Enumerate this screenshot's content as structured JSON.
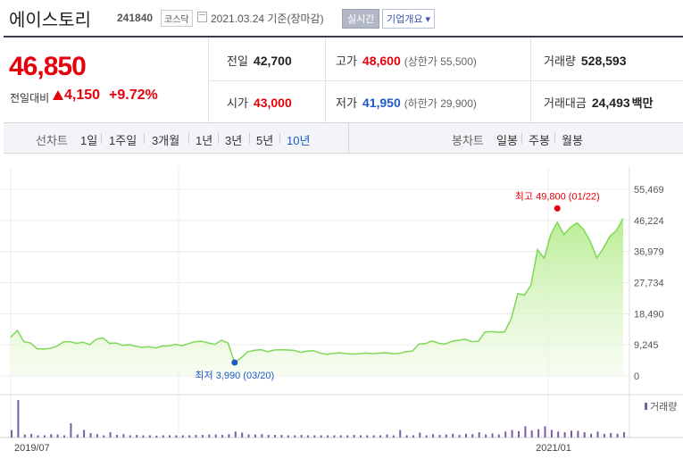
{
  "header": {
    "stock_name": "에이스토리",
    "stock_code": "241840",
    "market": "코스닥",
    "date_text": "2021.03.24 기준(장마감)",
    "realtime_label": "실시간",
    "company_label": "기업개요 ▾"
  },
  "price": {
    "current": "46,850",
    "change_label": "전일대비",
    "change_value": "4,150",
    "change_pct": "+9.72%"
  },
  "stats": {
    "prev_label": "전일",
    "prev_value": "42,700",
    "high_label": "고가",
    "high_value": "48,600",
    "high_sub": "(상한가 55,500)",
    "volume_label": "거래량",
    "volume_value": "528,593",
    "open_label": "시가",
    "open_value": "43,000",
    "low_label": "저가",
    "low_value": "41,950",
    "low_sub": "(하한가 29,900)",
    "amount_label": "거래대금",
    "amount_value": "24,493",
    "amount_unit": "백만"
  },
  "tabs": {
    "line_label": "선차트",
    "line_periods": [
      "1일",
      "1주일",
      "3개월",
      "1년",
      "3년",
      "5년",
      "10년"
    ],
    "candle_label": "봉차트",
    "candle_periods": [
      "일봉",
      "주봉",
      "월봉"
    ]
  },
  "colors": {
    "up": "#e5000a",
    "down": "#1e5bc6",
    "line": "#7ed957",
    "volume": "#7a5fa8"
  },
  "chart_data": {
    "type": "area",
    "x_ticks": [
      "2019/07",
      "2021/01"
    ],
    "y_ticks": [
      "55,469",
      "46,224",
      "36,979",
      "27,734",
      "18,490",
      "9,245",
      "0"
    ],
    "ylim": [
      0,
      55469
    ],
    "grid": true,
    "max_label": "최고 49,800 (01/22)",
    "min_label": "최저 3,990 (03/20)",
    "volume_label": "거래량",
    "series": [
      {
        "values": [
          11500,
          13500,
          10200,
          9800,
          8100,
          8000,
          8200,
          8800,
          10100,
          10200,
          9700,
          10000,
          9300,
          10900,
          11300,
          9700,
          9800,
          9100,
          9300,
          8800,
          8500,
          8700,
          8300,
          8900,
          8900,
          9400,
          9000,
          9600,
          10200,
          10300,
          9800,
          9400,
          10600,
          9800,
          3990,
          5400,
          7200,
          7600,
          7800,
          7200,
          7700,
          7800,
          7700,
          7600,
          7000,
          7400,
          7500,
          6800,
          6400,
          6700,
          6900,
          6600,
          6500,
          6600,
          6800,
          6600,
          6800,
          6900,
          6600,
          6700,
          7200,
          7400,
          9500,
          9600,
          10400,
          9700,
          9500,
          10300,
          10600,
          10900,
          10200,
          10300,
          13000,
          13200,
          13000,
          13100,
          17000,
          24500,
          24000,
          27000,
          37500,
          35000,
          42000,
          45700,
          42000,
          44200,
          45500,
          43500,
          40000,
          35100,
          38000,
          41500,
          43300,
          46850
        ]
      }
    ],
    "volume": [
      20,
      100,
      8,
      10,
      6,
      6,
      9,
      8,
      6,
      38,
      8,
      20,
      12,
      9,
      6,
      14,
      7,
      9,
      6,
      7,
      6,
      6,
      5,
      6,
      6,
      6,
      6,
      6,
      7,
      7,
      8,
      8,
      7,
      9,
      16,
      13,
      8,
      8,
      9,
      7,
      7,
      7,
      6,
      6,
      7,
      6,
      6,
      6,
      6,
      6,
      6,
      6,
      7,
      6,
      6,
      6,
      6,
      8,
      6,
      20,
      6,
      6,
      13,
      6,
      9,
      7,
      8,
      10,
      7,
      10,
      9,
      14,
      8,
      11,
      8,
      16,
      20,
      17,
      30,
      19,
      22,
      30,
      20,
      16,
      14,
      18,
      18,
      14,
      10,
      16,
      10,
      12,
      10,
      14
    ]
  }
}
